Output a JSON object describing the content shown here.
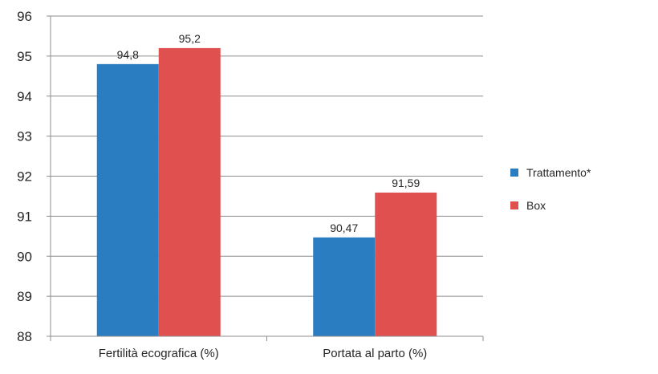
{
  "chart_data": {
    "type": "bar",
    "categories": [
      "Fertilità ecografica (%)",
      "Portata al parto (%)"
    ],
    "series": [
      {
        "name": "Trattamento*",
        "values": [
          94.8,
          90.47
        ],
        "labels": [
          "94,8",
          "90,47"
        ],
        "color": "#2A7DC1"
      },
      {
        "name": "Box",
        "values": [
          95.2,
          91.59
        ],
        "labels": [
          "95,2",
          "91,59"
        ],
        "color": "#E0504F"
      }
    ],
    "yticks": [
      "88",
      "89",
      "90",
      "91",
      "92",
      "93",
      "94",
      "95",
      "96"
    ],
    "ylim": [
      88,
      96
    ],
    "grid": true,
    "legend_position": "right"
  }
}
